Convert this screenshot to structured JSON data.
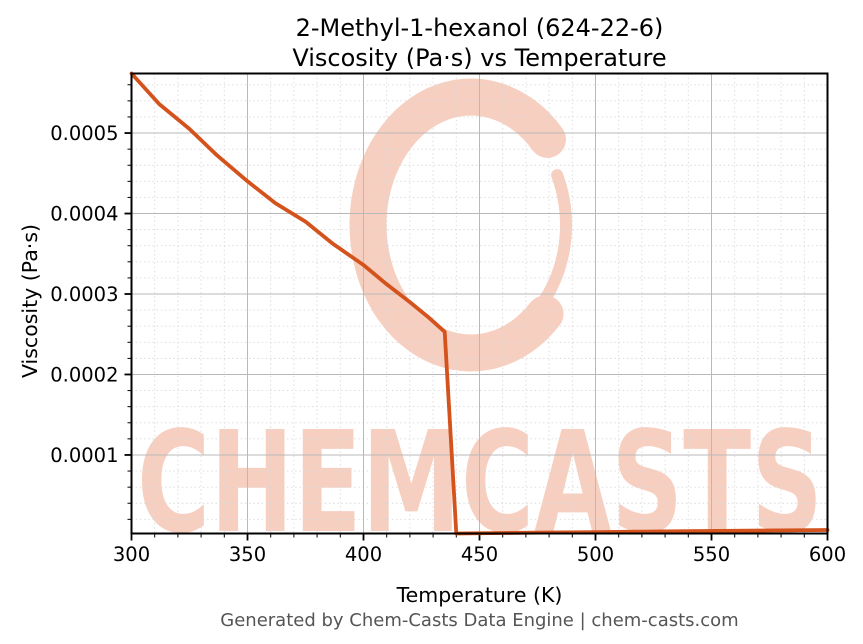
{
  "title": {
    "line1": "2-Methyl-1-hexanol (624-22-6)",
    "line2": "Viscosity (Pa·s) vs Temperature"
  },
  "watermark": {
    "text": "CHEMCASTS",
    "logo": "c-swirl-logo",
    "color": "#f7cfc0"
  },
  "footer": {
    "text": "Generated by Chem-Casts Data Engine | chem-casts.com"
  },
  "colors": {
    "line": "#d4521c",
    "grid_major": "#b9b9b9",
    "grid_minor": "#d8d8d8",
    "spine": "#000000",
    "footer_text": "#555555",
    "watermark": "#f7cfc0"
  },
  "chart_data": {
    "type": "line",
    "title": "2-Methyl-1-hexanol (624-22-6) Viscosity (Pa·s) vs Temperature",
    "xlabel": "Temperature (K)",
    "ylabel": "Viscosity (Pa·s)",
    "xlim": [
      300,
      600
    ],
    "ylim": [
      2.4e-06,
      0.000574
    ],
    "x_ticks": [
      300,
      350,
      400,
      450,
      500,
      550,
      600
    ],
    "x_tick_labels": [
      "300",
      "350",
      "400",
      "450",
      "500",
      "550",
      "600"
    ],
    "y_ticks": [
      0.0001,
      0.0002,
      0.0003,
      0.0004,
      0.0005
    ],
    "y_tick_labels": [
      "0.0001",
      "0.0002",
      "0.0003",
      "0.0004",
      "0.0005"
    ],
    "x_minor_step": 10,
    "y_minor_step": 2e-05,
    "grid": {
      "major": true,
      "minor": true
    },
    "legend": "none",
    "series": [
      {
        "name": "Viscosity (Pa·s)",
        "color": "#d4521c",
        "points": [
          [
            300,
            0.000574
          ],
          [
            312,
            0.000536
          ],
          [
            325,
            0.000505
          ],
          [
            337,
            0.000472
          ],
          [
            350,
            0.00044
          ],
          [
            362,
            0.000413
          ],
          [
            375,
            0.00039
          ],
          [
            387,
            0.000362
          ],
          [
            400,
            0.000336
          ],
          [
            410,
            0.000312
          ],
          [
            420,
            0.00029
          ],
          [
            428,
            0.000271
          ],
          [
            435,
            0.000253
          ],
          [
            440,
            2.4e-06
          ],
          [
            460,
            3e-06
          ],
          [
            480,
            3.6e-06
          ],
          [
            500,
            4.1e-06
          ],
          [
            520,
            4.7e-06
          ],
          [
            540,
            5.2e-06
          ],
          [
            560,
            5.7e-06
          ],
          [
            580,
            6.2e-06
          ],
          [
            600,
            6.7e-06
          ]
        ]
      }
    ]
  }
}
